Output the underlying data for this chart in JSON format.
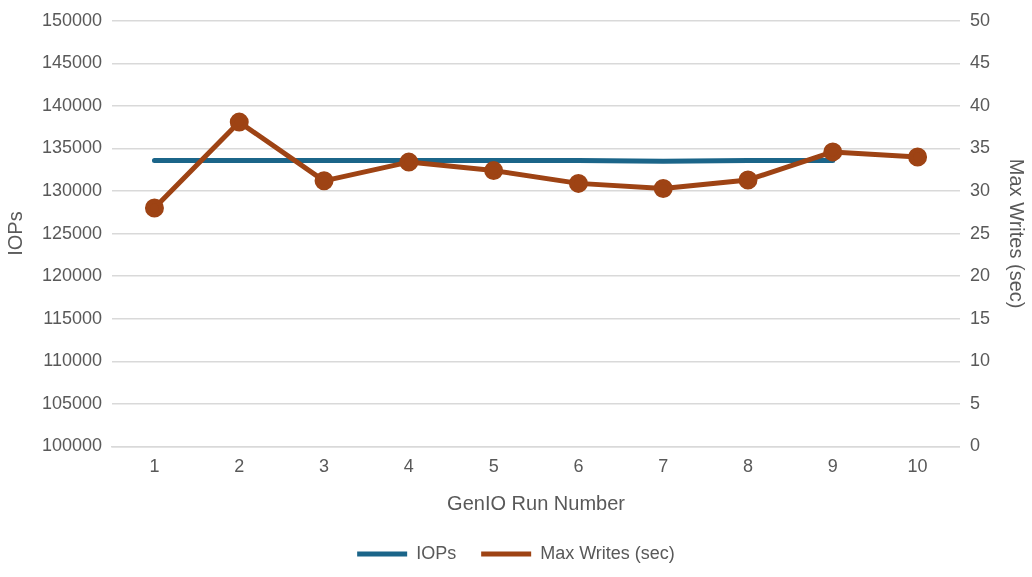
{
  "chart_data": {
    "type": "line",
    "categories": [
      "1",
      "2",
      "3",
      "4",
      "5",
      "6",
      "7",
      "8",
      "9",
      "10"
    ],
    "xlabel": "GenIO Run Number",
    "ylabel": "IOPs",
    "y2label": "Max Writes (sec)",
    "series": [
      {
        "name": "IOPs",
        "color": "#1b6589",
        "marker": "none",
        "values": [
          133600,
          133600,
          133600,
          null,
          133600,
          133600,
          133500,
          133600,
          133600,
          null
        ]
      },
      {
        "name": "Max Writes (sec)",
        "color": "#9e4314",
        "marker": "circle",
        "axis": "y2",
        "values": [
          28.0,
          38.1,
          31.2,
          33.4,
          32.4,
          30.9,
          30.3,
          31.3,
          34.6,
          34.0
        ]
      }
    ],
    "ylim": [
      100000,
      150000
    ],
    "yticks": [
      100000,
      105000,
      110000,
      115000,
      120000,
      125000,
      130000,
      135000,
      140000,
      145000,
      150000
    ],
    "y2lim": [
      0,
      50
    ],
    "y2ticks": [
      0,
      5,
      10,
      15,
      20,
      25,
      30,
      35,
      40,
      45,
      50
    ],
    "grid": "y",
    "legend": "bottom"
  }
}
